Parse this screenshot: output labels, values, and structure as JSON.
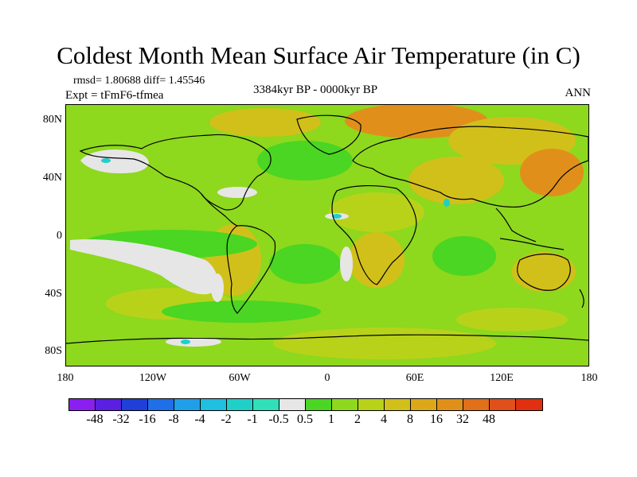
{
  "title": "Coldest Month Mean Surface Air Temperature (in C)",
  "stats": "rmsd= 1.80688 diff= 1.45546",
  "experiment": "Expt = tFmF6-tfmea",
  "period": "3384kyr BP - 0000kyr BP",
  "season": "ANN",
  "y_ticks": [
    "80N",
    "40N",
    "0",
    "40S",
    "80S"
  ],
  "x_ticks": [
    "180",
    "120W",
    "60W",
    "0",
    "60E",
    "120E",
    "180"
  ],
  "colorbar": {
    "colors": [
      "#8a1ff0",
      "#5a1fe0",
      "#1f3fd8",
      "#1f6fe8",
      "#1f9fe8",
      "#1fbfe0",
      "#1fd0c8",
      "#30e0b8",
      "#e6e6e6",
      "#4ad622",
      "#8ed81e",
      "#b8d21a",
      "#d2c01a",
      "#dca81a",
      "#e0901a",
      "#e0701a",
      "#e0501a",
      "#e03010"
    ],
    "labels": [
      "-48",
      "-32",
      "-16",
      "-8",
      "-4",
      "-2",
      "-1",
      "-0.5",
      "0.5",
      "1",
      "2",
      "4",
      "8",
      "16",
      "32",
      "48"
    ]
  },
  "map_colors": {
    "base": "#8ed81e",
    "warm": "#b8d21a",
    "warmer": "#d2c01a",
    "hot": "#e0901a",
    "near_zero": "#e6e6e6",
    "cool": "#4ad622",
    "cold": "#1fd0c8",
    "coast": "#000000"
  }
}
